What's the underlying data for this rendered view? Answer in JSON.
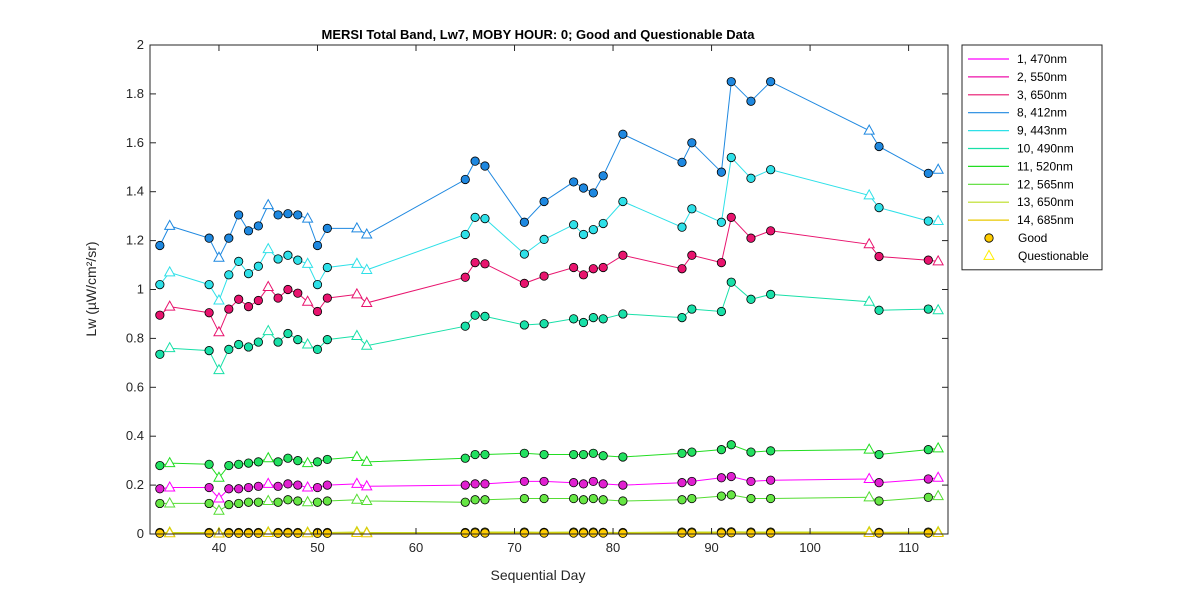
{
  "chart_data": {
    "type": "line",
    "title": "MERSI Total Band,  Lw7, MOBY HOUR: 0;  Good and Questionable Data",
    "xlabel": "Sequential Day",
    "ylabel": "Lw (µW/cm²/sr)",
    "xlim": [
      33,
      114
    ],
    "ylim": [
      0,
      2
    ],
    "x_ticks": [
      40,
      50,
      60,
      70,
      80,
      90,
      100,
      110
    ],
    "y_ticks": [
      0,
      0.2,
      0.4,
      0.6,
      0.8,
      1,
      1.2,
      1.4,
      1.6,
      1.8,
      2
    ],
    "x_tick_labels": [
      "40",
      "50",
      "60",
      "70",
      "80",
      "90",
      "100",
      "110"
    ],
    "y_tick_labels": [
      "0",
      "0.2",
      "0.4",
      "0.6",
      "0.8",
      "1",
      "1.2",
      "1.4",
      "1.6",
      "1.8",
      "2"
    ],
    "grid": false,
    "legend_position": "outside-right",
    "days": [
      34,
      35,
      39,
      40,
      41,
      42,
      43,
      44,
      45,
      46,
      47,
      48,
      49,
      50,
      51,
      54,
      55,
      65,
      66,
      67,
      71,
      73,
      76,
      77,
      78,
      79,
      81,
      87,
      88,
      91,
      92,
      94,
      96,
      106,
      107,
      112,
      113
    ],
    "questionable": [
      false,
      true,
      false,
      true,
      false,
      false,
      false,
      false,
      true,
      false,
      false,
      false,
      true,
      false,
      false,
      true,
      true,
      false,
      false,
      false,
      false,
      false,
      false,
      false,
      false,
      false,
      false,
      false,
      false,
      false,
      false,
      false,
      false,
      true,
      false,
      false,
      true
    ],
    "series": [
      {
        "name": "1, 470nm",
        "color": "#ff00ff",
        "marker_fill": "#e020d0",
        "values": [
          0.185,
          0.19,
          0.19,
          0.145,
          0.185,
          0.185,
          0.19,
          0.195,
          0.205,
          0.195,
          0.205,
          0.2,
          0.19,
          0.19,
          0.2,
          0.205,
          0.195,
          0.2,
          0.205,
          0.205,
          0.215,
          0.215,
          0.21,
          0.205,
          0.215,
          0.205,
          0.2,
          0.21,
          0.215,
          0.23,
          0.235,
          0.215,
          0.22,
          0.225,
          0.21,
          0.225,
          0.23
        ],
        "draw_line": true,
        "draw_markers": true
      },
      {
        "name": "2, 550nm",
        "color": "#ee11aa",
        "values": [],
        "draw_line": false,
        "draw_markers": false
      },
      {
        "name": "3, 650nm",
        "color": "#e8146e",
        "marker_fill": "#e8146e",
        "values": [
          0.895,
          0.93,
          0.905,
          0.825,
          0.92,
          0.96,
          0.93,
          0.955,
          1.01,
          0.965,
          1.0,
          0.985,
          0.95,
          0.91,
          0.965,
          0.98,
          0.945,
          1.05,
          1.11,
          1.105,
          1.025,
          1.055,
          1.09,
          1.06,
          1.085,
          1.09,
          1.14,
          1.085,
          1.14,
          1.11,
          1.295,
          1.21,
          1.24,
          1.185,
          1.135,
          1.12,
          1.115
        ],
        "draw_line": true,
        "draw_markers": true
      },
      {
        "name": "8, 412nm",
        "color": "#1e88e0",
        "marker_fill": "#1e88e0",
        "values": [
          1.18,
          1.26,
          1.21,
          1.13,
          1.21,
          1.305,
          1.24,
          1.26,
          1.345,
          1.305,
          1.31,
          1.305,
          1.29,
          1.18,
          1.25,
          1.25,
          1.225,
          1.45,
          1.525,
          1.505,
          1.275,
          1.36,
          1.44,
          1.415,
          1.395,
          1.465,
          1.635,
          1.52,
          1.6,
          1.48,
          1.85,
          1.77,
          1.85,
          1.65,
          1.585,
          1.475,
          1.49
        ],
        "draw_line": true,
        "draw_markers": true
      },
      {
        "name": "9, 443nm",
        "color": "#2ee0e8",
        "marker_fill": "#2ee0e8",
        "values": [
          1.02,
          1.07,
          1.02,
          0.955,
          1.06,
          1.115,
          1.065,
          1.095,
          1.165,
          1.125,
          1.14,
          1.12,
          1.105,
          1.02,
          1.09,
          1.105,
          1.08,
          1.225,
          1.295,
          1.29,
          1.145,
          1.205,
          1.265,
          1.225,
          1.245,
          1.27,
          1.36,
          1.255,
          1.33,
          1.275,
          1.54,
          1.455,
          1.49,
          1.385,
          1.335,
          1.28,
          1.28
        ],
        "draw_line": true,
        "draw_markers": true
      },
      {
        "name": "10, 490nm",
        "color": "#18e0a8",
        "marker_fill": "#18e0a8",
        "values": [
          0.735,
          0.76,
          0.75,
          0.67,
          0.755,
          0.775,
          0.765,
          0.785,
          0.83,
          0.785,
          0.82,
          0.795,
          0.775,
          0.755,
          0.795,
          0.81,
          0.77,
          0.85,
          0.895,
          0.89,
          0.855,
          0.86,
          0.88,
          0.865,
          0.885,
          0.88,
          0.9,
          0.885,
          0.92,
          0.91,
          1.03,
          0.96,
          0.98,
          0.95,
          0.915,
          0.92,
          0.915
        ],
        "draw_line": true,
        "draw_markers": true
      },
      {
        "name": "11, 520nm",
        "color": "#22dd22",
        "marker_fill": "#22e060",
        "values": [
          0.28,
          0.29,
          0.285,
          0.23,
          0.28,
          0.285,
          0.29,
          0.295,
          0.31,
          0.295,
          0.31,
          0.3,
          0.29,
          0.295,
          0.305,
          0.315,
          0.295,
          0.31,
          0.325,
          0.325,
          0.33,
          0.325,
          0.325,
          0.325,
          0.33,
          0.32,
          0.315,
          0.33,
          0.335,
          0.345,
          0.365,
          0.335,
          0.34,
          0.345,
          0.325,
          0.345,
          0.35
        ],
        "draw_line": true,
        "draw_markers": true
      },
      {
        "name": "12, 565nm",
        "color": "#55dd33",
        "marker_fill": "#66e644",
        "values": [
          0.125,
          0.125,
          0.125,
          0.095,
          0.12,
          0.125,
          0.13,
          0.13,
          0.135,
          0.13,
          0.14,
          0.135,
          0.13,
          0.13,
          0.135,
          0.14,
          0.135,
          0.13,
          0.14,
          0.14,
          0.145,
          0.145,
          0.145,
          0.14,
          0.145,
          0.14,
          0.135,
          0.14,
          0.145,
          0.155,
          0.16,
          0.145,
          0.145,
          0.15,
          0.135,
          0.15,
          0.155
        ],
        "draw_line": true,
        "draw_markers": true
      },
      {
        "name": "13, 650nm",
        "color": "#bbdd22",
        "marker_fill": "#c4dd22",
        "values": [
          0.006,
          0.006,
          0.006,
          0.004,
          0.006,
          0.006,
          0.006,
          0.006,
          0.007,
          0.006,
          0.007,
          0.006,
          0.006,
          0.006,
          0.006,
          0.008,
          0.006,
          0.006,
          0.008,
          0.008,
          0.008,
          0.007,
          0.008,
          0.008,
          0.008,
          0.007,
          0.006,
          0.008,
          0.008,
          0.008,
          0.009,
          0.008,
          0.008,
          0.008,
          0.007,
          0.008,
          0.008
        ],
        "draw_line": true,
        "draw_markers": true
      },
      {
        "name": "14, 685nm",
        "color": "#e8c800",
        "marker_fill": "#ffcc00",
        "values": [
          0.003,
          0.003,
          0.003,
          0.002,
          0.003,
          0.003,
          0.003,
          0.003,
          0.004,
          0.003,
          0.004,
          0.003,
          0.003,
          0.003,
          0.003,
          0.004,
          0.003,
          0.003,
          0.004,
          0.004,
          0.004,
          0.004,
          0.004,
          0.004,
          0.004,
          0.004,
          0.003,
          0.004,
          0.004,
          0.004,
          0.005,
          0.004,
          0.004,
          0.004,
          0.004,
          0.004,
          0.004
        ],
        "draw_line": true,
        "draw_markers": true
      }
    ],
    "legend_markers": [
      {
        "name": "Good",
        "marker": "circle",
        "fill": "#ffcc00",
        "stroke": "#000000"
      },
      {
        "name": "Questionable",
        "marker": "triangle",
        "fill": "none",
        "stroke": "#ffee00"
      }
    ]
  }
}
